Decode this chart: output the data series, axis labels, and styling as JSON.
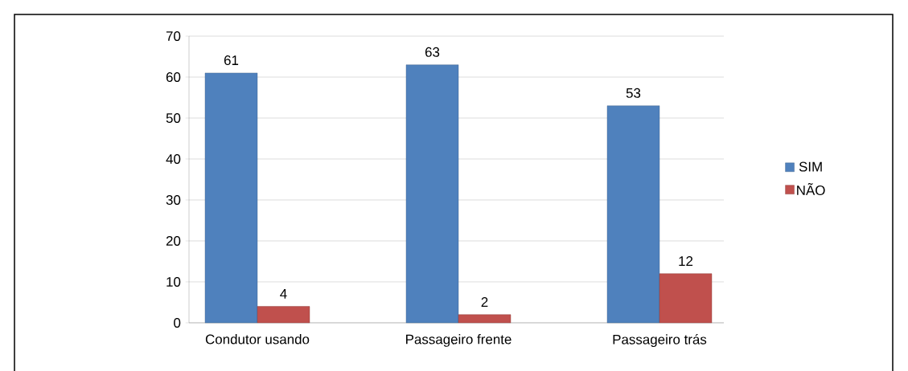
{
  "chart_data": {
    "type": "bar",
    "categories": [
      "Condutor usando",
      "Passageiro frente",
      "Passageiro trás"
    ],
    "series": [
      {
        "name": "SIM",
        "color": "#4f81bd",
        "values": [
          61,
          63,
          53
        ]
      },
      {
        "name": "NÃO",
        "color": "#c0504d",
        "values": [
          4,
          2,
          12
        ]
      }
    ],
    "ylim": [
      0,
      70
    ],
    "yticks": [
      0,
      10,
      20,
      30,
      40,
      50,
      60,
      70
    ],
    "grid": "y",
    "legend": "right",
    "data_labels": true
  }
}
